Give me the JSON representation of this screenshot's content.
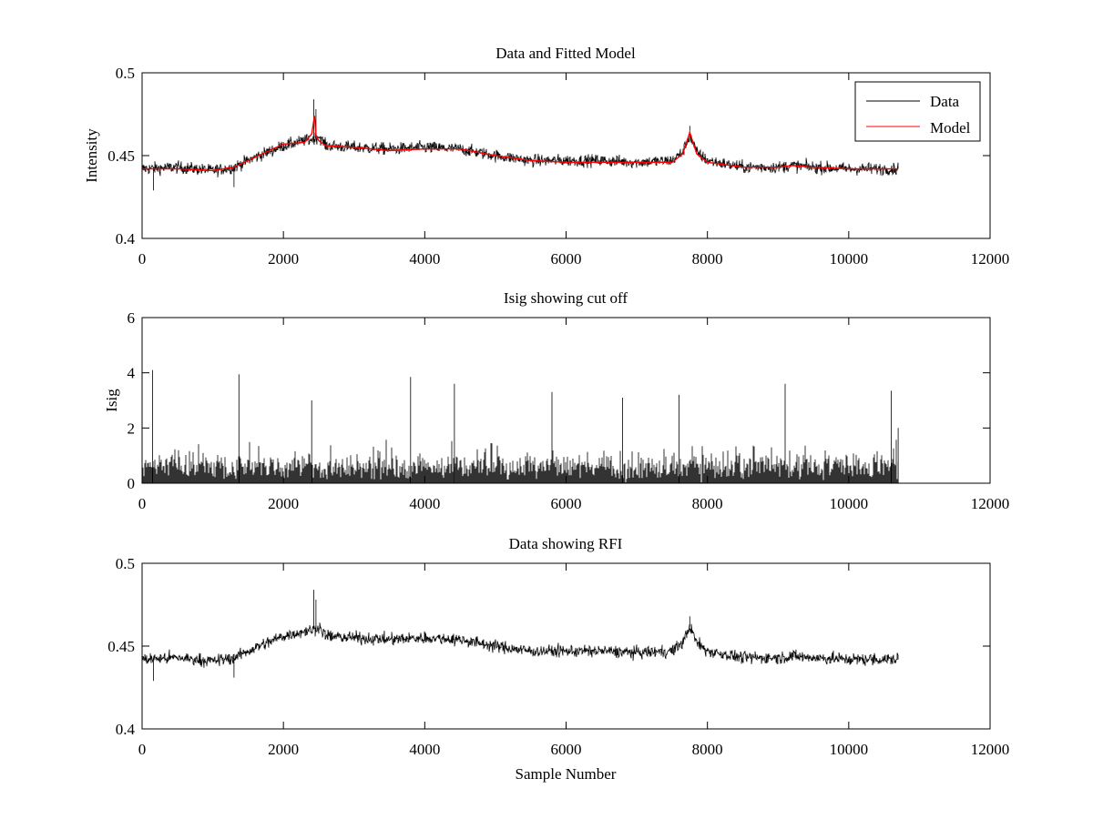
{
  "chart_data": [
    {
      "type": "line",
      "title": "Data and Fitted Model",
      "xlabel": "",
      "ylabel": "Intensity",
      "xlim": [
        0,
        12000
      ],
      "ylim": [
        0.4,
        0.5
      ],
      "xticks": [
        0,
        2000,
        4000,
        6000,
        8000,
        10000,
        12000
      ],
      "xtick_labels": [
        "0",
        "2000",
        "4000",
        "6000",
        "8000",
        "10000",
        "12000"
      ],
      "yticks": [
        0.4,
        0.45,
        0.5
      ],
      "ytick_labels": [
        "0.4",
        "0.45",
        "0.5"
      ],
      "legend": {
        "position": "top-right",
        "entries": [
          "Data",
          "Model"
        ]
      },
      "series": [
        {
          "name": "Data",
          "color": "#000000",
          "n_points": 10700,
          "baseline_x": [
            0,
            500,
            1000,
            1300,
            1600,
            2000,
            2300,
            2430,
            2500,
            2600,
            3000,
            3500,
            4000,
            4500,
            5000,
            5500,
            6000,
            6500,
            7000,
            7500,
            7650,
            7750,
            7850,
            8000,
            8500,
            9000,
            9200,
            9500,
            10000,
            10700
          ],
          "baseline_y": [
            0.442,
            0.443,
            0.441,
            0.443,
            0.449,
            0.456,
            0.459,
            0.46,
            0.462,
            0.456,
            0.455,
            0.454,
            0.455,
            0.454,
            0.45,
            0.447,
            0.447,
            0.447,
            0.446,
            0.447,
            0.452,
            0.462,
            0.452,
            0.447,
            0.443,
            0.443,
            0.444,
            0.443,
            0.442,
            0.442
          ],
          "noise_amplitude": 0.004,
          "spikes": [
            {
              "x": 2430,
              "y": 0.484
            },
            {
              "x": 2460,
              "y": 0.478
            },
            {
              "x": 7750,
              "y": 0.468
            },
            {
              "x": 160,
              "y": 0.429
            },
            {
              "x": 1300,
              "y": 0.431
            }
          ]
        },
        {
          "name": "Model",
          "color": "#ff0000",
          "x": [
            0,
            500,
            1000,
            1300,
            1600,
            2000,
            2300,
            2400,
            2440,
            2460,
            2500,
            2600,
            3000,
            3500,
            4000,
            4500,
            5000,
            5500,
            6000,
            6500,
            7000,
            7500,
            7650,
            7750,
            7850,
            8000,
            8500,
            9000,
            9200,
            9500,
            10000,
            10700
          ],
          "y": [
            0.442,
            0.442,
            0.441,
            0.443,
            0.449,
            0.457,
            0.458,
            0.463,
            0.474,
            0.462,
            0.459,
            0.456,
            0.455,
            0.453,
            0.454,
            0.454,
            0.45,
            0.447,
            0.446,
            0.446,
            0.446,
            0.446,
            0.451,
            0.464,
            0.451,
            0.446,
            0.443,
            0.443,
            0.444,
            0.443,
            0.442,
            0.442
          ]
        }
      ]
    },
    {
      "type": "line",
      "title": "Isig showing cut off",
      "xlabel": "",
      "ylabel": "Isig",
      "xlim": [
        0,
        12000
      ],
      "ylim": [
        0,
        6
      ],
      "xticks": [
        0,
        2000,
        4000,
        6000,
        8000,
        10000,
        12000
      ],
      "xtick_labels": [
        "0",
        "2000",
        "4000",
        "6000",
        "8000",
        "10000",
        "12000"
      ],
      "yticks": [
        0,
        2,
        4,
        6
      ],
      "ytick_labels": [
        "0",
        "2",
        "4",
        "6"
      ],
      "series": [
        {
          "name": "Isig",
          "color": "#000000",
          "n_points": 10700,
          "typical_max": 2.2,
          "peaks": [
            {
              "x": 150,
              "y": 4.1
            },
            {
              "x": 1370,
              "y": 3.95
            },
            {
              "x": 3800,
              "y": 3.85
            },
            {
              "x": 4420,
              "y": 3.6
            },
            {
              "x": 5800,
              "y": 3.3
            },
            {
              "x": 7600,
              "y": 3.2
            },
            {
              "x": 9100,
              "y": 3.6
            },
            {
              "x": 10600,
              "y": 3.35
            },
            {
              "x": 2400,
              "y": 3.0
            },
            {
              "x": 6800,
              "y": 3.1
            }
          ]
        }
      ]
    },
    {
      "type": "line",
      "title": "Data showing RFI",
      "xlabel": "Sample Number",
      "ylabel": "",
      "xlim": [
        0,
        12000
      ],
      "ylim": [
        0.4,
        0.5
      ],
      "xticks": [
        0,
        2000,
        4000,
        6000,
        8000,
        10000,
        12000
      ],
      "xtick_labels": [
        "0",
        "2000",
        "4000",
        "6000",
        "8000",
        "10000",
        "12000"
      ],
      "yticks": [
        0.4,
        0.45,
        0.5
      ],
      "ytick_labels": [
        "0.4",
        "0.45",
        "0.5"
      ],
      "series": [
        {
          "name": "Data",
          "color": "#000000",
          "n_points": 10700,
          "baseline_x": [
            0,
            500,
            1000,
            1300,
            1600,
            2000,
            2300,
            2430,
            2500,
            2600,
            3000,
            3500,
            4000,
            4500,
            5000,
            5500,
            6000,
            6500,
            7000,
            7500,
            7650,
            7750,
            7850,
            8000,
            8500,
            9000,
            9200,
            9500,
            10000,
            10700
          ],
          "baseline_y": [
            0.442,
            0.443,
            0.441,
            0.443,
            0.449,
            0.456,
            0.459,
            0.46,
            0.462,
            0.456,
            0.455,
            0.454,
            0.455,
            0.454,
            0.45,
            0.447,
            0.447,
            0.447,
            0.446,
            0.447,
            0.452,
            0.462,
            0.452,
            0.447,
            0.443,
            0.443,
            0.444,
            0.443,
            0.442,
            0.442
          ],
          "noise_amplitude": 0.004,
          "spikes": [
            {
              "x": 2430,
              "y": 0.484
            },
            {
              "x": 2460,
              "y": 0.478
            },
            {
              "x": 7750,
              "y": 0.468
            },
            {
              "x": 160,
              "y": 0.429
            },
            {
              "x": 1300,
              "y": 0.431
            }
          ]
        }
      ]
    }
  ]
}
